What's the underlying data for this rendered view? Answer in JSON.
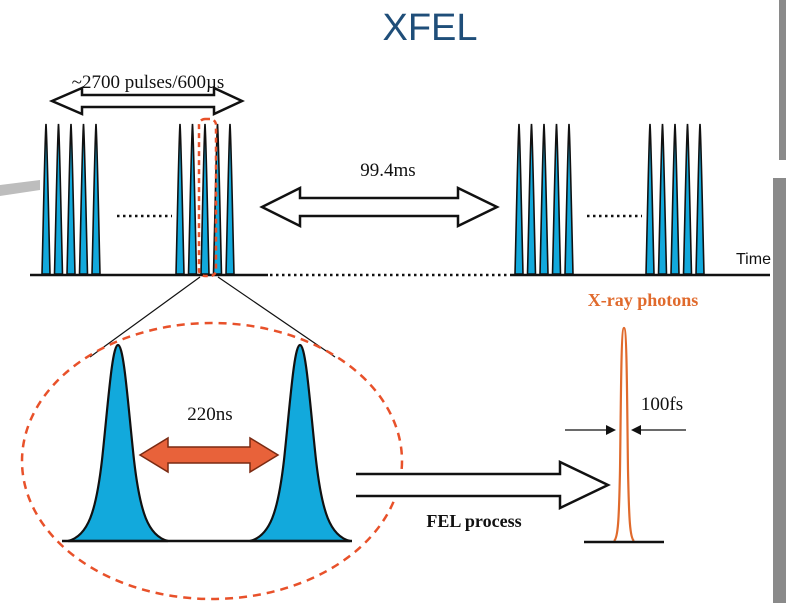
{
  "title": "XFEL",
  "labels": {
    "train_duration": "~2700 pulses/600µs",
    "train_gap": "99.4ms",
    "time_axis": "Time",
    "pulse_spacing": "220ns",
    "xray_title": "X-ray photons",
    "xray_width": "100fs",
    "process": "FEL process"
  },
  "colors": {
    "title": "#1f4e79",
    "pulse_fill": "#12a9dc",
    "highlight": "#e8512a",
    "accent_arrow": "#e8623a",
    "xray": "#e06a2c",
    "line": "#111111",
    "frame_bar": "#8a8a8a"
  },
  "icons": {
    "double_arrow": "double-headed-arrow",
    "process_arrow": "right-arrow"
  }
}
